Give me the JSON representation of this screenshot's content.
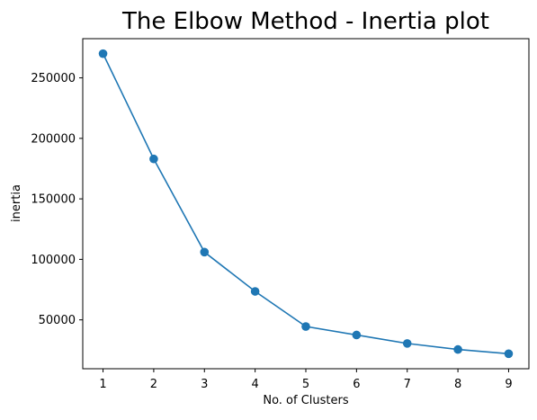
{
  "chart_data": {
    "type": "line",
    "title": "The Elbow Method - Inertia plot",
    "xlabel": "No. of Clusters",
    "ylabel": "inertia",
    "x": [
      1,
      2,
      3,
      4,
      5,
      6,
      7,
      8,
      9
    ],
    "series": [
      {
        "values": [
          270000,
          183000,
          106000,
          73500,
          44500,
          37500,
          30500,
          25500,
          22000
        ],
        "color": "#1f77b4",
        "marker": "circle"
      }
    ],
    "xticks": [
      "1",
      "2",
      "3",
      "4",
      "5",
      "6",
      "7",
      "8",
      "9"
    ],
    "yticks": [
      {
        "value": 50000,
        "label": "50000"
      },
      {
        "value": 100000,
        "label": "100000"
      },
      {
        "value": 150000,
        "label": "150000"
      },
      {
        "value": 200000,
        "label": "200000"
      },
      {
        "value": 250000,
        "label": "250000"
      }
    ],
    "xlim": [
      0.6,
      9.4
    ],
    "ylim": [
      9600,
      282400
    ],
    "grid": false,
    "legend": "none"
  }
}
